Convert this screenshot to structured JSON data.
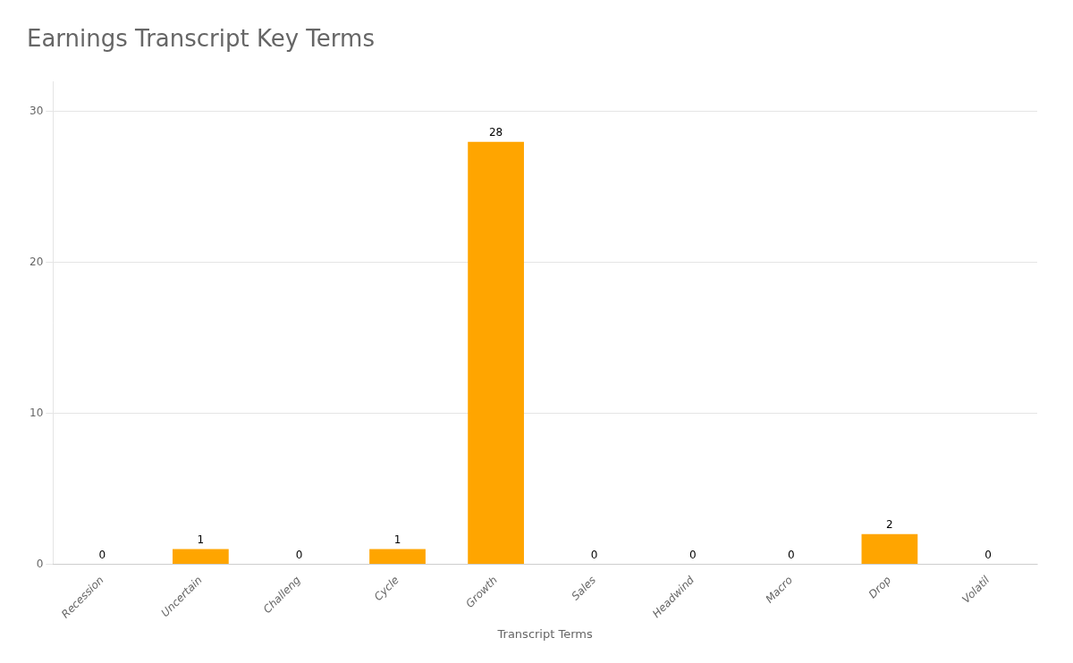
{
  "chart_data": {
    "type": "bar",
    "title": "Earnings Transcript Key Terms",
    "xlabel": "Transcript Terms",
    "categories": [
      "Recession",
      "Uncertain",
      "Challeng",
      "Cycle",
      "Growth",
      "Sales",
      "Headwind",
      "Macro",
      "Drop",
      "Volatil"
    ],
    "values": [
      0,
      1,
      0,
      1,
      28,
      0,
      0,
      0,
      2,
      0
    ],
    "color": "#FFA500",
    "ylim": [
      0,
      32
    ],
    "yticks": [
      0,
      10,
      20,
      30
    ],
    "grid": true,
    "data_labels": true
  }
}
